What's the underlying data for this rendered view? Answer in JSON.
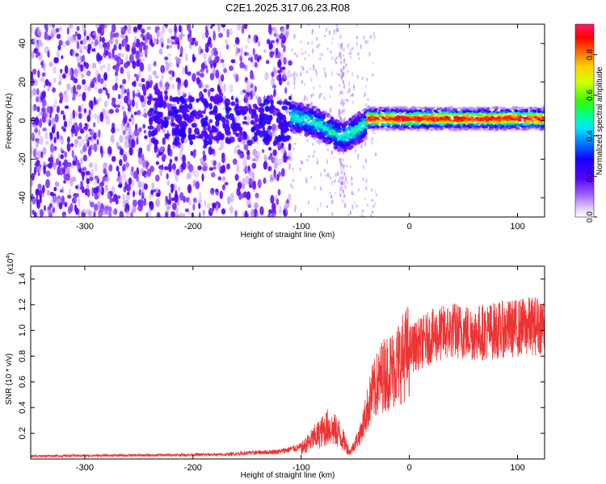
{
  "chart_data": [
    {
      "type": "heatmap",
      "title": "C2E1.2025.317.06.23.R08",
      "xlabel": "Height of straight line (km)",
      "ylabel": "Frequency (Hz)",
      "xlim": [
        -350,
        125
      ],
      "ylim": [
        -50,
        50
      ],
      "x_ticks": [
        -300,
        -200,
        -100,
        0,
        100
      ],
      "x_tick_labels": [
        "-300",
        "-200",
        "-100",
        "0",
        "100"
      ],
      "y_ticks": [
        -40,
        -20,
        0,
        20,
        40
      ],
      "y_tick_labels": [
        "-40",
        "-20",
        "0",
        "20",
        "40"
      ],
      "colorbar": {
        "label": "Normalized spectral amplitude",
        "range": [
          0,
          0.95
        ],
        "ticks": [
          0.0,
          0.2,
          0.4,
          0.6,
          0.8
        ],
        "tick_labels": [
          "0.0",
          "0.2",
          "0.4",
          "0.6",
          "0.8"
        ]
      },
      "features": {
        "noise_region_x": [
          -350,
          -110
        ],
        "transition_x": [
          -110,
          -40
        ],
        "signal_line_freq_hz": 0,
        "signal_peak_amplitude": 0.9,
        "dip_center": {
          "x": -62,
          "freq": -8
        }
      }
    },
    {
      "type": "line",
      "xlabel": "Height of straight line (km)",
      "ylabel": "SNR (10 * v/v)",
      "y_scale_label": "(x10",
      "y_scale_exponent": "4",
      "y_scale_close": ")",
      "xlim": [
        -350,
        125
      ],
      "ylim": [
        0,
        1.5
      ],
      "x_ticks": [
        -300,
        -200,
        -100,
        0,
        100
      ],
      "x_tick_labels": [
        "-300",
        "-200",
        "-100",
        "0",
        "100"
      ],
      "y_ticks": [
        0.2,
        0.4,
        0.6,
        0.8,
        1.0,
        1.2,
        1.4
      ],
      "y_tick_labels": [
        "0.2",
        "0.4",
        "0.6",
        "0.8",
        "1.0",
        "1.2",
        "1.4"
      ],
      "series_color": "#ee3333",
      "x": [
        -350,
        -250,
        -170,
        -150,
        -120,
        -100,
        -90,
        -75,
        -65,
        -58,
        -55,
        -45,
        -35,
        -25,
        -15,
        0,
        20,
        40,
        60,
        80,
        100,
        125
      ],
      "y": [
        0.02,
        0.025,
        0.03,
        0.04,
        0.05,
        0.08,
        0.15,
        0.25,
        0.2,
        0.1,
        0.05,
        0.2,
        0.5,
        0.65,
        0.7,
        0.85,
        0.95,
        1.0,
        0.98,
        1.0,
        1.02,
        1.05
      ]
    }
  ]
}
